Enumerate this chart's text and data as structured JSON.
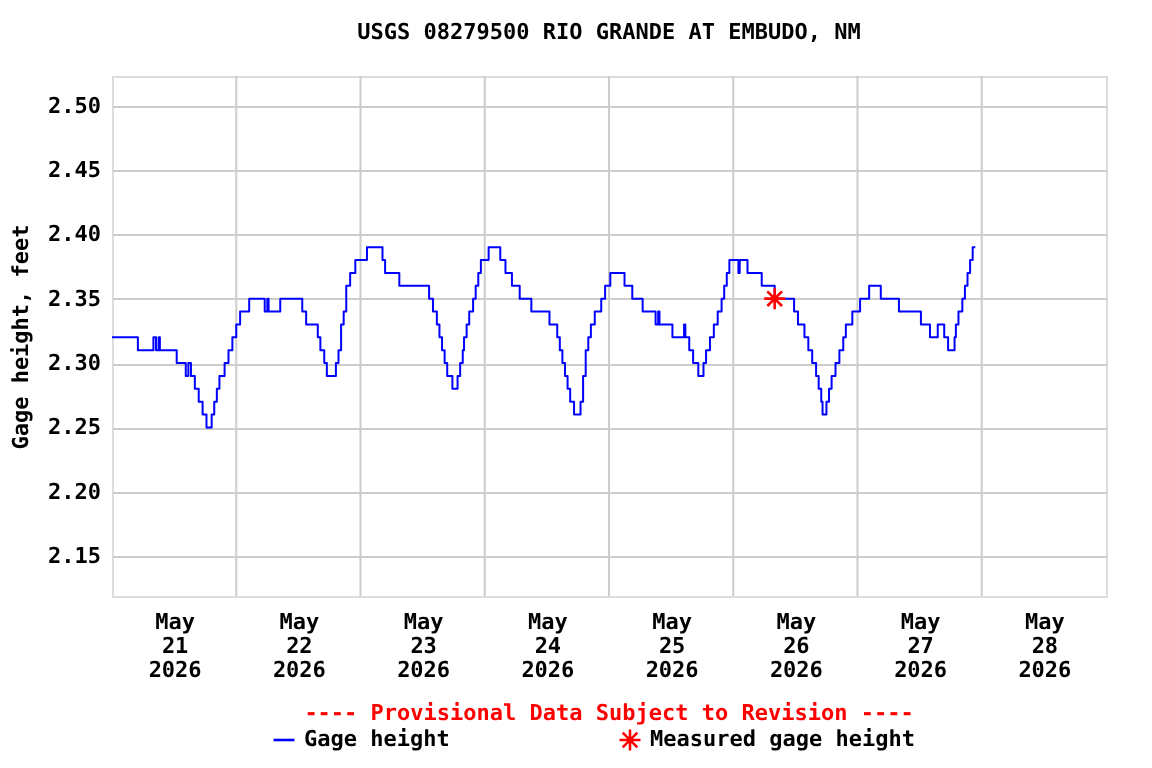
{
  "chart_data": {
    "type": "step",
    "title": "USGS 08279500 RIO GRANDE AT EMBUDO, NM",
    "ylabel": "Gage height, feet",
    "annotations": [
      "---- Provisional Data Subject to Revision ----"
    ],
    "xlim": [
      "2026-05-21T00:00",
      "2026-05-29T00:00"
    ],
    "xticks": [
      {
        "value": "2026-05-21T12:00",
        "label": "May\n21\n2026"
      },
      {
        "value": "2026-05-22T00:00",
        "label": null
      },
      {
        "value": "2026-05-22T12:00",
        "label": "May\n22\n2026"
      },
      {
        "value": "2026-05-23T00:00",
        "label": null
      },
      {
        "value": "2026-05-23T12:00",
        "label": "May\n23\n2026"
      },
      {
        "value": "2026-05-24T00:00",
        "label": null
      },
      {
        "value": "2026-05-24T12:00",
        "label": "May\n24\n2026"
      },
      {
        "value": "2026-05-25T00:00",
        "label": null
      },
      {
        "value": "2026-05-25T12:00",
        "label": "May\n25\n2026"
      },
      {
        "value": "2026-05-26T00:00",
        "label": null
      },
      {
        "value": "2026-05-26T12:00",
        "label": "May\n26\n2026"
      },
      {
        "value": "2026-05-27T00:00",
        "label": null
      },
      {
        "value": "2026-05-27T12:00",
        "label": "May\n27\n2026"
      },
      {
        "value": "2026-05-28T00:00",
        "label": null
      },
      {
        "value": "2026-05-28T12:00",
        "label": "May\n28\n2026"
      }
    ],
    "ylim": [
      2.119,
      2.523
    ],
    "yticks": [
      2.15,
      {
        "value": 2.2,
        "label": "2.20"
      },
      2.25,
      {
        "value": 2.3,
        "label": "2.30"
      },
      2.35,
      {
        "value": 2.4,
        "label": "2.40"
      },
      2.45,
      {
        "value": 2.5,
        "label": "2.50"
      }
    ],
    "grid": true,
    "legend": "bottom",
    "series": [
      {
        "name": "Gage height",
        "type": "step",
        "color": "#0000ff",
        "x": [
          "2026-05-21T00:00",
          "2026-05-21T05:00",
          "2026-05-21T08:00",
          "2026-05-21T08:30",
          "2026-05-21T09:00",
          "2026-05-21T09:15",
          "2026-05-21T12:30",
          "2026-05-21T14:15",
          "2026-05-21T14:45",
          "2026-05-21T15:15",
          "2026-05-21T16:00",
          "2026-05-21T16:45",
          "2026-05-21T17:30",
          "2026-05-21T18:15",
          "2026-05-21T19:15",
          "2026-05-21T19:45",
          "2026-05-21T20:15",
          "2026-05-21T20:45",
          "2026-05-21T21:45",
          "2026-05-21T22:30",
          "2026-05-21T23:15",
          "2026-05-22T00:00",
          "2026-05-22T00:45",
          "2026-05-22T02:30",
          "2026-05-22T05:30",
          "2026-05-22T06:00",
          "2026-05-22T06:15",
          "2026-05-22T08:30",
          "2026-05-22T12:45",
          "2026-05-22T13:30",
          "2026-05-22T15:45",
          "2026-05-22T16:15",
          "2026-05-22T17:00",
          "2026-05-22T17:30",
          "2026-05-22T19:15",
          "2026-05-22T19:45",
          "2026-05-22T20:15",
          "2026-05-22T20:45",
          "2026-05-22T21:15",
          "2026-05-22T22:00",
          "2026-05-22T23:00",
          "2026-05-23T01:15",
          "2026-05-23T04:15",
          "2026-05-23T04:45",
          "2026-05-23T07:30",
          "2026-05-23T13:15",
          "2026-05-23T14:00",
          "2026-05-23T14:45",
          "2026-05-23T15:15",
          "2026-05-23T15:45",
          "2026-05-23T16:15",
          "2026-05-23T16:45",
          "2026-05-23T17:45",
          "2026-05-23T18:45",
          "2026-05-23T19:15",
          "2026-05-23T19:45",
          "2026-05-23T20:00",
          "2026-05-23T20:30",
          "2026-05-23T21:00",
          "2026-05-23T21:45",
          "2026-05-23T22:15",
          "2026-05-23T22:45",
          "2026-05-23T23:15",
          "2026-05-24T00:45",
          "2026-05-24T03:00",
          "2026-05-24T04:00",
          "2026-05-24T05:15",
          "2026-05-24T06:45",
          "2026-05-24T09:00",
          "2026-05-24T12:30",
          "2026-05-24T14:00",
          "2026-05-24T14:30",
          "2026-05-24T15:00",
          "2026-05-24T15:30",
          "2026-05-24T16:00",
          "2026-05-24T16:30",
          "2026-05-24T17:15",
          "2026-05-24T18:30",
          "2026-05-24T19:00",
          "2026-05-24T19:30",
          "2026-05-24T20:00",
          "2026-05-24T20:30",
          "2026-05-24T21:15",
          "2026-05-24T22:30",
          "2026-05-24T23:15",
          "2026-05-25T00:15",
          "2026-05-25T03:00",
          "2026-05-25T04:30",
          "2026-05-25T06:30",
          "2026-05-25T09:00",
          "2026-05-25T09:30",
          "2026-05-25T09:45",
          "2026-05-25T12:15",
          "2026-05-25T14:30",
          "2026-05-25T14:45",
          "2026-05-25T15:30",
          "2026-05-25T16:15",
          "2026-05-25T17:15",
          "2026-05-25T18:15",
          "2026-05-25T18:45",
          "2026-05-25T19:30",
          "2026-05-25T20:15",
          "2026-05-25T21:00",
          "2026-05-25T21:45",
          "2026-05-25T22:15",
          "2026-05-25T22:45",
          "2026-05-25T23:15",
          "2026-05-26T01:00",
          "2026-05-26T01:15",
          "2026-05-26T02:45",
          "2026-05-26T05:30",
          "2026-05-26T08:00",
          "2026-05-26T11:45",
          "2026-05-26T12:30",
          "2026-05-26T13:45",
          "2026-05-26T14:30",
          "2026-05-26T15:15",
          "2026-05-26T16:00",
          "2026-05-26T16:30",
          "2026-05-26T17:00",
          "2026-05-26T17:15",
          "2026-05-26T18:00",
          "2026-05-26T18:30",
          "2026-05-26T19:00",
          "2026-05-26T19:45",
          "2026-05-26T20:30",
          "2026-05-26T21:15",
          "2026-05-26T21:45",
          "2026-05-26T23:00",
          "2026-05-27T00:30",
          "2026-05-27T02:15",
          "2026-05-27T04:30",
          "2026-05-27T08:00",
          "2026-05-27T12:15",
          "2026-05-27T14:00",
          "2026-05-27T15:30",
          "2026-05-27T16:45",
          "2026-05-27T17:30",
          "2026-05-27T18:45",
          "2026-05-27T19:00",
          "2026-05-27T19:30",
          "2026-05-27T20:15",
          "2026-05-27T20:45",
          "2026-05-27T21:15",
          "2026-05-27T21:45",
          "2026-05-27T22:15",
          "2026-05-27T22:45"
        ],
        "values": [
          2.32,
          2.31,
          2.32,
          2.31,
          2.32,
          2.31,
          2.3,
          2.29,
          2.3,
          2.29,
          2.28,
          2.27,
          2.26,
          2.25,
          2.26,
          2.27,
          2.28,
          2.29,
          2.3,
          2.31,
          2.32,
          2.33,
          2.34,
          2.35,
          2.34,
          2.35,
          2.34,
          2.35,
          2.34,
          2.33,
          2.32,
          2.31,
          2.3,
          2.29,
          2.3,
          2.31,
          2.33,
          2.34,
          2.36,
          2.37,
          2.38,
          2.39,
          2.38,
          2.37,
          2.36,
          2.35,
          2.34,
          2.33,
          2.32,
          2.31,
          2.3,
          2.29,
          2.28,
          2.29,
          2.3,
          2.31,
          2.32,
          2.33,
          2.34,
          2.35,
          2.36,
          2.37,
          2.38,
          2.39,
          2.38,
          2.37,
          2.36,
          2.35,
          2.34,
          2.33,
          2.32,
          2.31,
          2.3,
          2.29,
          2.28,
          2.27,
          2.26,
          2.27,
          2.29,
          2.31,
          2.32,
          2.33,
          2.34,
          2.35,
          2.36,
          2.37,
          2.36,
          2.35,
          2.34,
          2.33,
          2.34,
          2.33,
          2.32,
          2.33,
          2.32,
          2.31,
          2.3,
          2.29,
          2.3,
          2.31,
          2.32,
          2.33,
          2.34,
          2.35,
          2.36,
          2.37,
          2.38,
          2.37,
          2.38,
          2.37,
          2.36,
          2.35,
          2.34,
          2.33,
          2.32,
          2.31,
          2.3,
          2.29,
          2.28,
          2.27,
          2.26,
          2.27,
          2.28,
          2.29,
          2.3,
          2.31,
          2.32,
          2.33,
          2.34,
          2.35,
          2.36,
          2.35,
          2.34,
          2.33,
          2.32,
          2.33,
          2.32,
          2.31,
          2.32,
          2.33,
          2.34,
          2.35,
          2.36,
          2.37,
          2.38,
          2.39,
          2.39
        ]
      },
      {
        "name": "Measured gage height",
        "type": "scatter",
        "color": "#ff0000",
        "marker": "cross",
        "x": [
          "2026-05-26T08:00"
        ],
        "values": [
          2.35
        ]
      }
    ]
  }
}
